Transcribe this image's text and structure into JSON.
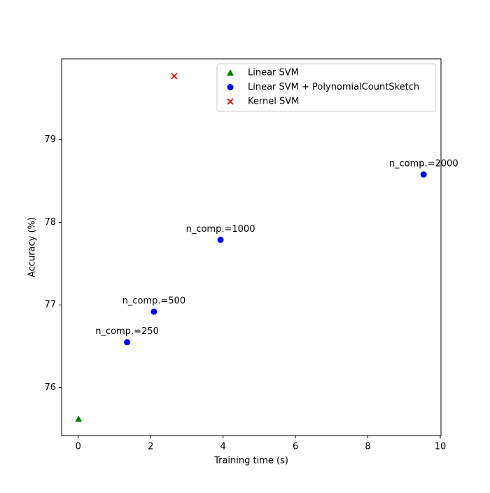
{
  "chart_data": {
    "type": "scatter",
    "x_label": "Training time (s)",
    "y_label": "Accuracy (%)",
    "xlim": [
      -0.46,
      10.02
    ],
    "xticks": [
      0,
      2,
      4,
      6,
      8,
      10
    ],
    "ylim": [
      75.42,
      79.98
    ],
    "yticks": [
      76,
      77,
      78,
      79
    ],
    "legend": "upper right",
    "series": [
      {
        "name": "Linear SVM",
        "color": "green",
        "marker": "triangle",
        "x": [
          0.01
        ],
        "values": [
          75.62
        ]
      },
      {
        "name": "Linear SVM + PolynomialCountSketch",
        "color": "blue",
        "marker": "circle",
        "x": [
          1.35,
          2.09,
          3.93,
          9.54
        ],
        "values": [
          76.55,
          76.92,
          77.79,
          78.58
        ],
        "point_labels": [
          "n_comp.=250",
          "n_comp.=500",
          "n_comp.=1000",
          "n_comp.=2000"
        ]
      },
      {
        "name": "Kernel SVM",
        "color": "red",
        "marker": "x",
        "x": [
          2.65
        ],
        "values": [
          79.77
        ]
      }
    ]
  }
}
